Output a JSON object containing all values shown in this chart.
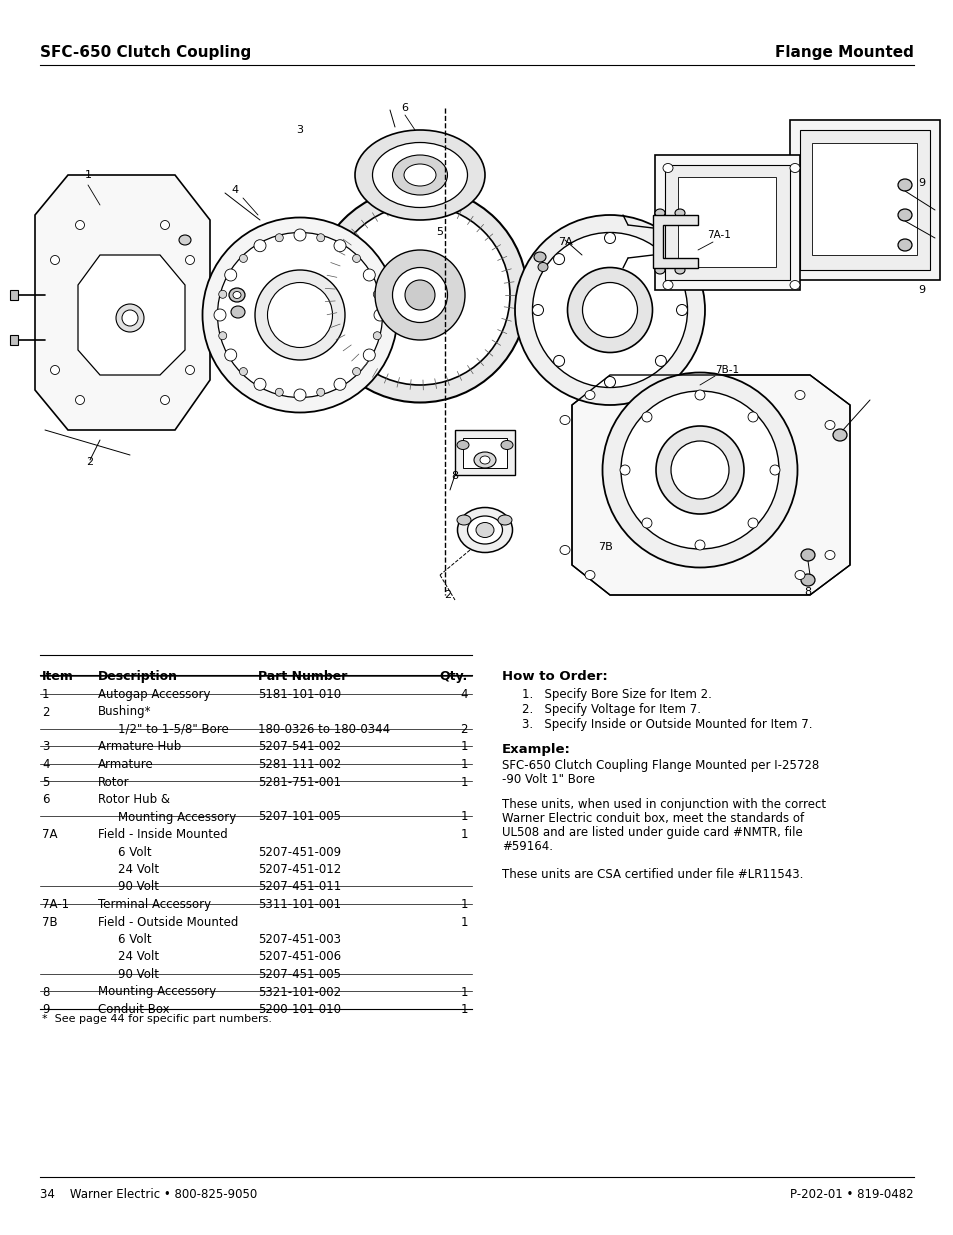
{
  "title_left": "SFC-650 Clutch Coupling",
  "title_right": "Flange Mounted",
  "footer_left": "34    Warner Electric • 800-825-9050",
  "footer_right": "P-202-01 • 819-0482",
  "table_headers": [
    "Item",
    "Description",
    "Part Number",
    "Qty."
  ],
  "table_rows": [
    [
      "1",
      "Autogap Accessory",
      "5181-101-010",
      "4"
    ],
    [
      "2",
      "Bushing*",
      "",
      ""
    ],
    [
      "",
      "1/2\" to 1-5/8\" Bore",
      "180-0326 to 180-0344",
      "2"
    ],
    [
      "3",
      "Armature Hub",
      "5207-541-002",
      "1"
    ],
    [
      "4",
      "Armature",
      "5281-111-002",
      "1"
    ],
    [
      "5",
      "Rotor",
      "5281-751-001",
      "1"
    ],
    [
      "6",
      "Rotor Hub &",
      "",
      ""
    ],
    [
      "",
      "Mounting Accessory",
      "5207-101-005",
      "1"
    ],
    [
      "7A",
      "Field - Inside Mounted",
      "",
      "1"
    ],
    [
      "",
      "6 Volt",
      "5207-451-009",
      ""
    ],
    [
      "",
      "24 Volt",
      "5207-451-012",
      ""
    ],
    [
      "",
      "90 Volt",
      "5207-451-011",
      ""
    ],
    [
      "7A-1",
      "Terminal Accessory",
      "5311-101-001",
      "1"
    ],
    [
      "7B",
      "Field - Outside Mounted",
      "",
      "1"
    ],
    [
      "",
      "6 Volt",
      "5207-451-003",
      ""
    ],
    [
      "",
      "24 Volt",
      "5207-451-006",
      ""
    ],
    [
      "",
      "90 Volt",
      "5207-451-005",
      ""
    ],
    [
      "8",
      "Mounting Accessory",
      "5321-101-002",
      "1"
    ],
    [
      "9",
      "Conduit Box",
      "5200-101-010",
      "1"
    ]
  ],
  "footnote": "*  See page 44 for specific part numbers.",
  "how_to_order_title": "How to Order:",
  "how_to_order_items": [
    "Specify Bore Size for Item 2.",
    "Specify Voltage for Item 7.",
    "Specify Inside or Outside Mounted for Item 7."
  ],
  "example_title": "Example:",
  "example_line1": "SFC-650 Clutch Coupling Flange Mounted per I-25728",
  "example_line2": "-90 Volt 1\" Bore",
  "extra_text1_lines": [
    "These units, when used in conjunction with the correct",
    "Warner Electric conduit box, meet the standards of",
    "UL508 and are listed under guide card #NMTR, file",
    "#59164."
  ],
  "extra_text2": "These units are CSA certified under file #LR11543.",
  "bg_color": "#ffffff",
  "text_color": "#000000",
  "title_font_size": 11,
  "body_font_size": 8.5,
  "header_bold_size": 9
}
